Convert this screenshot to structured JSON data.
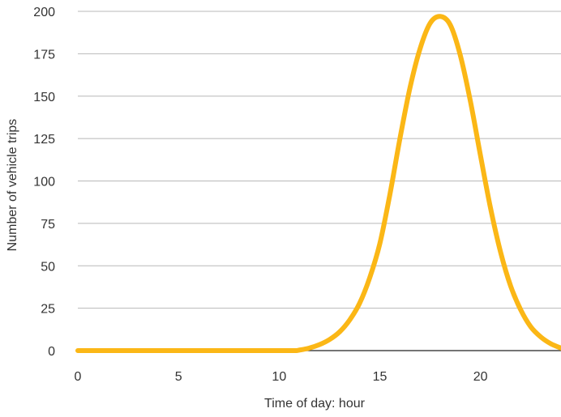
{
  "chart_data": {
    "type": "line",
    "title": "",
    "xlabel": "Time of day: hour",
    "ylabel": "Number of vehicle trips",
    "xlim": [
      0,
      24
    ],
    "ylim": [
      0,
      200
    ],
    "x_ticks": [
      0,
      5,
      10,
      15,
      20
    ],
    "y_ticks": [
      0,
      25,
      50,
      75,
      100,
      125,
      150,
      175,
      200
    ],
    "grid": "horizontal",
    "legend": "none",
    "series": [
      {
        "color": "#FBB716",
        "x": [
          0,
          2,
          4,
          6,
          8,
          10,
          10.8,
          11,
          11.5,
          12,
          12.5,
          13,
          13.5,
          14,
          14.5,
          15,
          15.5,
          16,
          16.5,
          17,
          17.5,
          18,
          18.5,
          19,
          19.5,
          20,
          20.5,
          21,
          21.5,
          22,
          22.5,
          23,
          23.5,
          24
        ],
        "y": [
          0,
          0,
          0,
          0,
          0,
          0,
          0,
          0.3,
          1.5,
          3.5,
          6.5,
          11,
          18,
          28,
          43,
          63,
          92,
          125,
          155,
          178,
          193,
          197,
          192,
          174,
          147,
          115,
          84,
          58,
          38,
          24,
          14,
          8,
          4,
          1.5
        ]
      }
    ]
  }
}
